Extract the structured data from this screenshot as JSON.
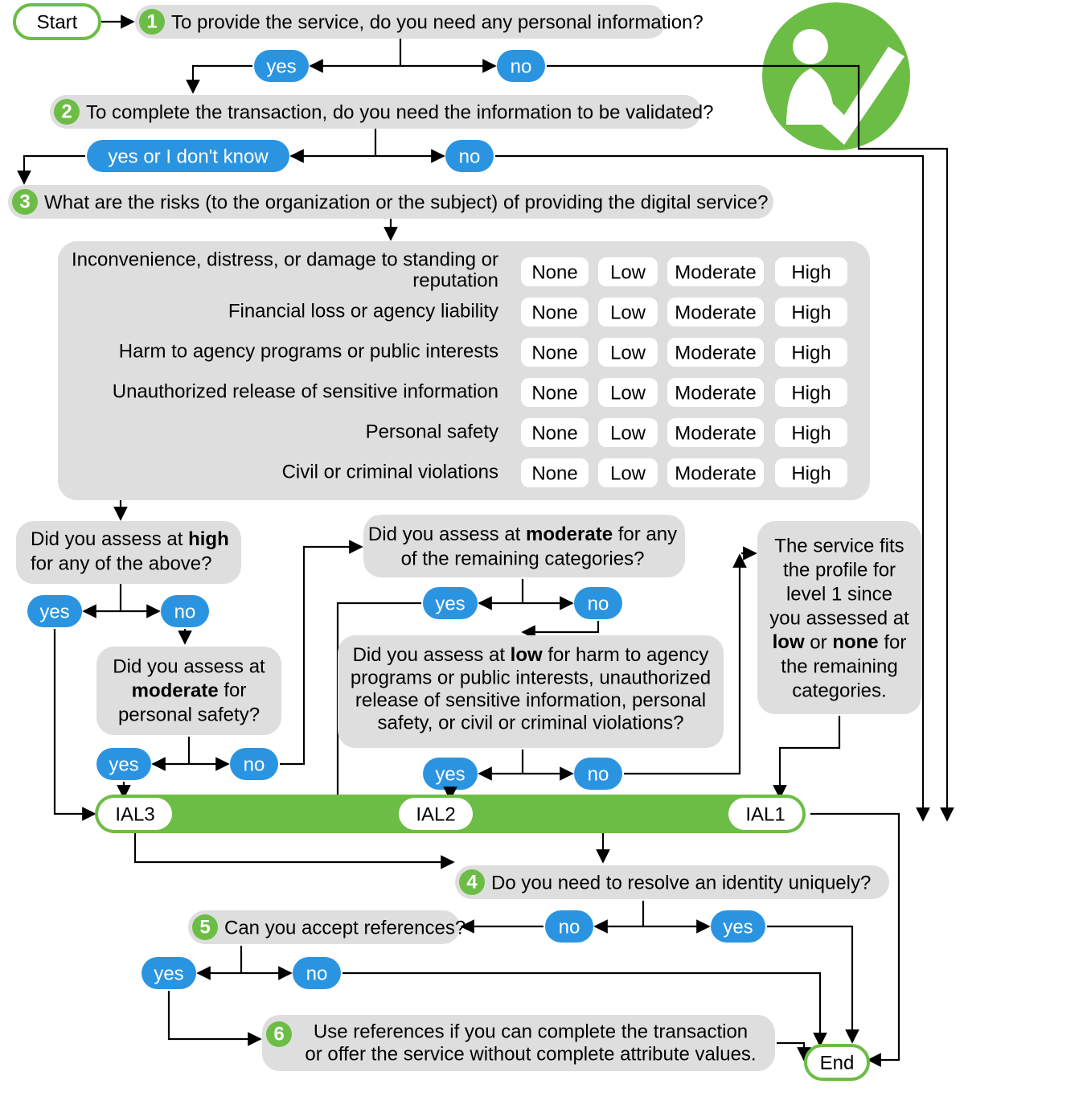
{
  "colors": {
    "green": "#6cbd45",
    "blue": "#2b94e1",
    "grey": "#dedede",
    "white": "#ffffff",
    "black": "#000000"
  },
  "font_size": 24,
  "nodes": {
    "start": "Start",
    "end": "End",
    "q1": "To provide the service, do you need any personal information?",
    "q2": "To complete the transaction, do you need the information to be validated?",
    "q3": "What are the risks (to the organization or the subject) of providing the digital service?",
    "q4": "Do you need to resolve an identity uniquely?",
    "q5": "Can you accept references?",
    "q6": "Use references if you can complete the transaction or offer the service without complete attribute values.",
    "assess_high": "Did you assess at high for any of the above?",
    "assess_mod_safety": "Did you assess at moderate for personal safety?",
    "assess_mod_remain": "Did you assess at moderate for any of the remaining categories?",
    "assess_low": "Did you assess at low for harm to agency programs or public interests, unauthorized release of sensitive information, personal safety, or civil or criminal violations?",
    "level1_note": "The service fits the profile for level 1 since you assessed at low or none for the remaining categories.",
    "ial1": "IAL1",
    "ial2": "IAL2",
    "ial3": "IAL3"
  },
  "risk_categories": [
    "Inconvenience, distress, or damage to standing or reputation",
    "Financial loss or agency liability",
    "Harm to agency programs or public interests",
    "Unauthorized release of sensitive information",
    "Personal safety",
    "Civil or criminal violations"
  ],
  "risk_levels": [
    "None",
    "Low",
    "Moderate",
    "High"
  ],
  "answers": {
    "yes": "yes",
    "no": "no",
    "yes_dk": "yes or I don't know"
  }
}
